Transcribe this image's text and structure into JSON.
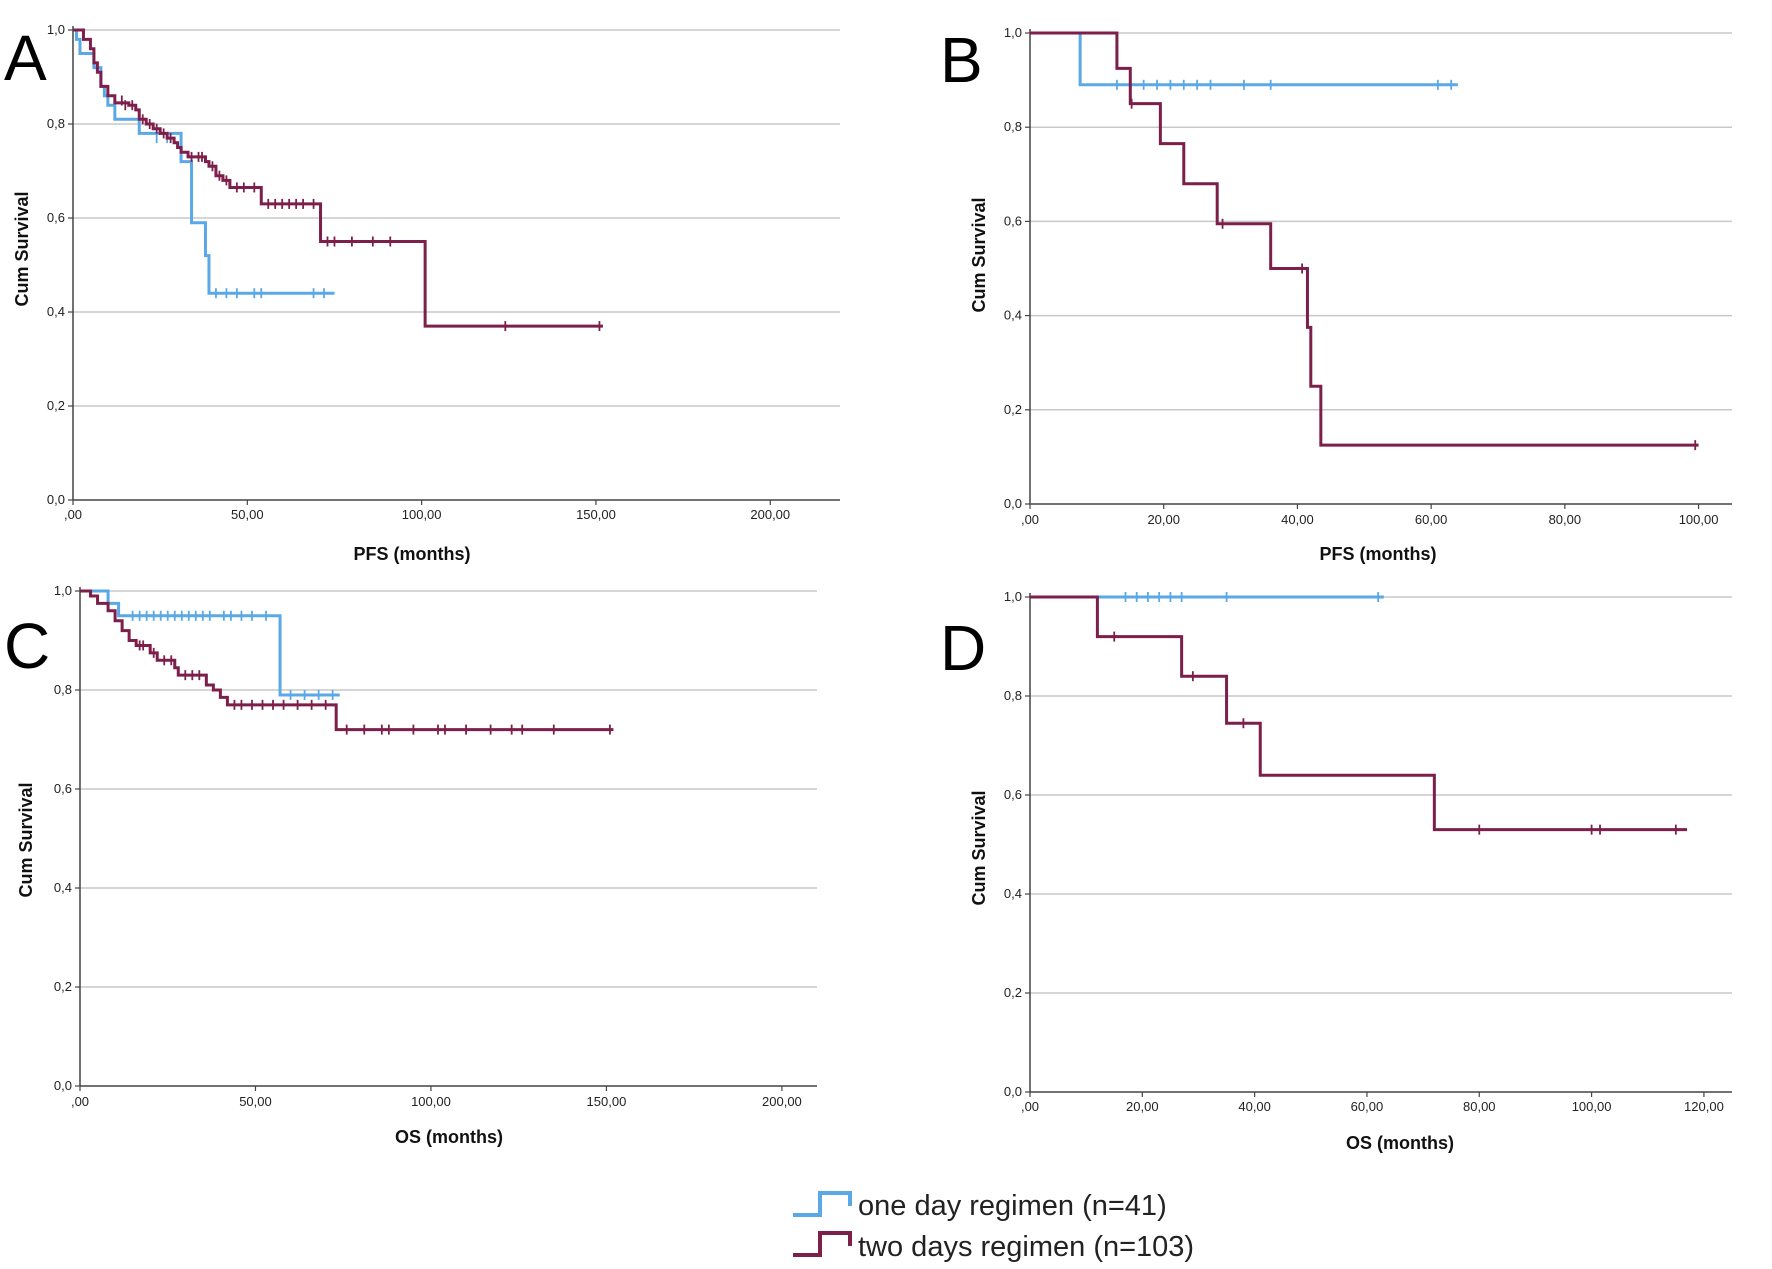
{
  "colors": {
    "one_day": "#5aa9e6",
    "two_days": "#7c1f4a",
    "grid": "#c8c8c8",
    "axis": "#444444"
  },
  "legend": {
    "items": [
      {
        "series_key": "one_day",
        "label": "one day regimen (n=41)"
      },
      {
        "series_key": "two_days",
        "label": "two days regimen (n=103)"
      }
    ]
  },
  "chart_data": [
    {
      "panel": "A",
      "type": "line",
      "xlabel": "PFS (months)",
      "ylabel": "Cum Survival",
      "xlim": [
        0,
        220
      ],
      "ylim": [
        0,
        1
      ],
      "xticks": [
        0,
        50,
        100,
        150,
        200
      ],
      "xtick_labels": [
        ",00",
        "50,00",
        "100,00",
        "150,00",
        "200,00"
      ],
      "yticks": [
        0,
        0.2,
        0.4,
        0.6,
        0.8,
        1.0
      ],
      "ytick_labels": [
        "0,0",
        "0,2",
        "0,4",
        "0,6",
        "0,8",
        "1,0"
      ],
      "series": [
        {
          "key": "one_day",
          "name": "one day regimen (n=41)",
          "steps": [
            [
              0,
              1.0
            ],
            [
              1,
              0.98
            ],
            [
              2,
              0.95
            ],
            [
              6,
              0.92
            ],
            [
              8,
              0.88
            ],
            [
              9,
              0.86
            ],
            [
              10,
              0.84
            ],
            [
              12,
              0.81
            ],
            [
              19,
              0.78
            ],
            [
              31,
              0.72
            ],
            [
              34,
              0.59
            ],
            [
              38,
              0.52
            ],
            [
              39,
              0.44
            ],
            [
              75,
              0.44
            ]
          ],
          "censors": [
            [
              24,
              0.77
            ],
            [
              27,
              0.77
            ],
            [
              41,
              0.44
            ],
            [
              44,
              0.44
            ],
            [
              47,
              0.44
            ],
            [
              52,
              0.44
            ],
            [
              54,
              0.44
            ],
            [
              69,
              0.44
            ],
            [
              72,
              0.44
            ]
          ]
        },
        {
          "key": "two_days",
          "name": "two days regimen (n=103)",
          "steps": [
            [
              0,
              1.0
            ],
            [
              3,
              0.98
            ],
            [
              5,
              0.96
            ],
            [
              6,
              0.93
            ],
            [
              7,
              0.91
            ],
            [
              8,
              0.88
            ],
            [
              10,
              0.86
            ],
            [
              12,
              0.845
            ],
            [
              16,
              0.84
            ],
            [
              18,
              0.83
            ],
            [
              19,
              0.81
            ],
            [
              21,
              0.8
            ],
            [
              23,
              0.79
            ],
            [
              25,
              0.78
            ],
            [
              27,
              0.77
            ],
            [
              29,
              0.76
            ],
            [
              30,
              0.75
            ],
            [
              31,
              0.74
            ],
            [
              33,
              0.73
            ],
            [
              38,
              0.72
            ],
            [
              39,
              0.71
            ],
            [
              41,
              0.69
            ],
            [
              43,
              0.68
            ],
            [
              45,
              0.665
            ],
            [
              54,
              0.63
            ],
            [
              71,
              0.55
            ],
            [
              101,
              0.37
            ],
            [
              152,
              0.37
            ]
          ],
          "censors": [
            [
              14,
              0.85
            ],
            [
              15,
              0.84
            ],
            [
              17,
              0.84
            ],
            [
              20,
              0.81
            ],
            [
              22,
              0.8
            ],
            [
              24,
              0.79
            ],
            [
              26,
              0.78
            ],
            [
              28,
              0.77
            ],
            [
              34,
              0.73
            ],
            [
              36,
              0.73
            ],
            [
              37,
              0.73
            ],
            [
              40,
              0.71
            ],
            [
              42,
              0.69
            ],
            [
              44,
              0.68
            ],
            [
              47,
              0.665
            ],
            [
              49,
              0.665
            ],
            [
              52,
              0.665
            ],
            [
              56,
              0.63
            ],
            [
              58,
              0.63
            ],
            [
              60,
              0.63
            ],
            [
              62,
              0.63
            ],
            [
              64,
              0.63
            ],
            [
              66,
              0.63
            ],
            [
              69,
              0.63
            ],
            [
              73,
              0.55
            ],
            [
              75,
              0.55
            ],
            [
              80,
              0.55
            ],
            [
              86,
              0.55
            ],
            [
              91,
              0.55
            ],
            [
              124,
              0.37
            ],
            [
              151,
              0.37
            ]
          ]
        }
      ]
    },
    {
      "panel": "B",
      "type": "line",
      "xlabel": "PFS (months)",
      "ylabel": "Cum Survival",
      "xlim": [
        0,
        105
      ],
      "ylim": [
        0,
        1
      ],
      "xticks": [
        0,
        20,
        40,
        60,
        80,
        100
      ],
      "xtick_labels": [
        ",00",
        "20,00",
        "40,00",
        "60,00",
        "80,00",
        "100,00"
      ],
      "yticks": [
        0,
        0.2,
        0.4,
        0.6,
        0.8,
        1.0
      ],
      "ytick_labels": [
        "0,0",
        "0,2",
        "0,4",
        "0,6",
        "0,8",
        "1,0"
      ],
      "series": [
        {
          "key": "one_day",
          "name": "one day regimen (n=41)",
          "steps": [
            [
              0,
              1.0
            ],
            [
              7.5,
              0.89
            ],
            [
              64,
              0.89
            ]
          ],
          "censors": [
            [
              13,
              0.89
            ],
            [
              17,
              0.89
            ],
            [
              19,
              0.89
            ],
            [
              21,
              0.89
            ],
            [
              23,
              0.89
            ],
            [
              25,
              0.89
            ],
            [
              27,
              0.89
            ],
            [
              32,
              0.89
            ],
            [
              36,
              0.89
            ],
            [
              61,
              0.89
            ],
            [
              63,
              0.89
            ]
          ]
        },
        {
          "key": "two_days",
          "name": "two days regimen (n=103)",
          "steps": [
            [
              0,
              1.0
            ],
            [
              13,
              0.925
            ],
            [
              15,
              0.85
            ],
            [
              19.5,
              0.765
            ],
            [
              23,
              0.68
            ],
            [
              28,
              0.595
            ],
            [
              36,
              0.5
            ],
            [
              41.5,
              0.375
            ],
            [
              42,
              0.25
            ],
            [
              43.5,
              0.125
            ],
            [
              100,
              0.125
            ]
          ],
          "censors": [
            [
              15.2,
              0.85
            ],
            [
              28.8,
              0.595
            ],
            [
              40.7,
              0.5
            ],
            [
              99.5,
              0.125
            ]
          ]
        }
      ]
    },
    {
      "panel": "C",
      "type": "line",
      "xlabel": "OS (months)",
      "ylabel": "Cum Survival",
      "xlim": [
        0,
        210
      ],
      "ylim": [
        0,
        1
      ],
      "xticks": [
        0,
        50,
        100,
        150,
        200
      ],
      "xtick_labels": [
        ",00",
        "50,00",
        "100,00",
        "150,00",
        "200,00"
      ],
      "yticks": [
        0,
        0.2,
        0.4,
        0.6,
        0.8,
        1.0
      ],
      "ytick_labels": [
        "0,0",
        "0,2",
        "0,4",
        "0,6",
        "0,8",
        "1,0"
      ],
      "series": [
        {
          "key": "one_day",
          "name": "one day regimen (n=41)",
          "steps": [
            [
              0,
              1.0
            ],
            [
              8,
              0.975
            ],
            [
              11,
              0.95
            ],
            [
              57,
              0.79
            ],
            [
              74,
              0.79
            ]
          ],
          "censors": [
            [
              15,
              0.95
            ],
            [
              17,
              0.95
            ],
            [
              19,
              0.95
            ],
            [
              21,
              0.95
            ],
            [
              23,
              0.95
            ],
            [
              25,
              0.95
            ],
            [
              27,
              0.95
            ],
            [
              29,
              0.95
            ],
            [
              31,
              0.95
            ],
            [
              33,
              0.95
            ],
            [
              35,
              0.95
            ],
            [
              37,
              0.95
            ],
            [
              41,
              0.95
            ],
            [
              43,
              0.95
            ],
            [
              46,
              0.95
            ],
            [
              49,
              0.95
            ],
            [
              53,
              0.95
            ],
            [
              60,
              0.79
            ],
            [
              64,
              0.79
            ],
            [
              68,
              0.79
            ],
            [
              72,
              0.79
            ]
          ]
        },
        {
          "key": "two_days",
          "name": "two days regimen (n=103)",
          "steps": [
            [
              0,
              1.0
            ],
            [
              3,
              0.99
            ],
            [
              5,
              0.975
            ],
            [
              8,
              0.96
            ],
            [
              10,
              0.94
            ],
            [
              12,
              0.92
            ],
            [
              14,
              0.9
            ],
            [
              16,
              0.89
            ],
            [
              20,
              0.875
            ],
            [
              22,
              0.86
            ],
            [
              27,
              0.845
            ],
            [
              28,
              0.83
            ],
            [
              36,
              0.81
            ],
            [
              38,
              0.8
            ],
            [
              40,
              0.785
            ],
            [
              42,
              0.77
            ],
            [
              73,
              0.72
            ],
            [
              152,
              0.72
            ]
          ],
          "censors": [
            [
              17,
              0.89
            ],
            [
              18,
              0.89
            ],
            [
              21,
              0.875
            ],
            [
              24,
              0.86
            ],
            [
              26,
              0.86
            ],
            [
              30,
              0.83
            ],
            [
              32,
              0.83
            ],
            [
              34,
              0.83
            ],
            [
              44,
              0.77
            ],
            [
              46,
              0.77
            ],
            [
              49,
              0.77
            ],
            [
              52,
              0.77
            ],
            [
              55,
              0.77
            ],
            [
              58,
              0.77
            ],
            [
              62,
              0.77
            ],
            [
              66,
              0.77
            ],
            [
              70,
              0.77
            ],
            [
              76,
              0.72
            ],
            [
              81,
              0.72
            ],
            [
              86,
              0.72
            ],
            [
              88,
              0.72
            ],
            [
              95,
              0.72
            ],
            [
              102,
              0.72
            ],
            [
              104,
              0.72
            ],
            [
              110,
              0.72
            ],
            [
              117,
              0.72
            ],
            [
              123,
              0.72
            ],
            [
              126,
              0.72
            ],
            [
              135,
              0.72
            ],
            [
              151,
              0.72
            ]
          ]
        }
      ]
    },
    {
      "panel": "D",
      "type": "line",
      "xlabel": "OS (months)",
      "ylabel": "Cum Survival",
      "xlim": [
        0,
        125
      ],
      "ylim": [
        0,
        1
      ],
      "xticks": [
        0,
        20,
        40,
        60,
        80,
        100,
        120
      ],
      "xtick_labels": [
        ",00",
        "20,00",
        "40,00",
        "60,00",
        "80,00",
        "100,00",
        "120,00"
      ],
      "yticks": [
        0,
        0.2,
        0.4,
        0.6,
        0.8,
        1.0
      ],
      "ytick_labels": [
        "0,0",
        "0,2",
        "0,4",
        "0,6",
        "0,8",
        "1,0"
      ],
      "series": [
        {
          "key": "one_day",
          "name": "one day regimen (n=41)",
          "steps": [
            [
              0,
              1.0
            ],
            [
              63,
              1.0
            ]
          ],
          "censors": [
            [
              17,
              1.0
            ],
            [
              19,
              1.0
            ],
            [
              21,
              1.0
            ],
            [
              23,
              1.0
            ],
            [
              25,
              1.0
            ],
            [
              27,
              1.0
            ],
            [
              35,
              1.0
            ],
            [
              62,
              1.0
            ]
          ]
        },
        {
          "key": "two_days",
          "name": "two days regimen (n=103)",
          "steps": [
            [
              0,
              1.0
            ],
            [
              12,
              0.92
            ],
            [
              27,
              0.84
            ],
            [
              35,
              0.745
            ],
            [
              41,
              0.64
            ],
            [
              72,
              0.53
            ],
            [
              117,
              0.53
            ]
          ],
          "censors": [
            [
              15,
              0.92
            ],
            [
              29,
              0.84
            ],
            [
              38,
              0.745
            ],
            [
              80,
              0.53
            ],
            [
              100,
              0.53
            ],
            [
              101.5,
              0.53
            ],
            [
              115,
              0.53
            ]
          ]
        }
      ]
    }
  ]
}
